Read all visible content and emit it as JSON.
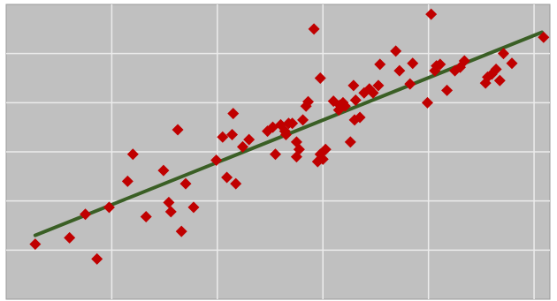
{
  "chart_data": {
    "type": "scatter",
    "title": "",
    "xlabel": "",
    "ylabel": "",
    "xlim": [
      0,
      10.3
    ],
    "ylim": [
      0,
      6
    ],
    "x_gridlines": [
      2,
      4,
      6,
      8,
      10
    ],
    "y_gridlines": [
      1,
      2,
      3,
      4,
      5
    ],
    "grid": true,
    "legend": "none",
    "colors": {
      "plot_background": "#c0c0c0",
      "gridline": "#ececec",
      "border": "#9a9a9a",
      "marker": "#c00000",
      "trendline": "#3a5f25"
    },
    "series": [
      {
        "marker": "diamond",
        "points": [
          [
            0.55,
            1.12
          ],
          [
            1.2,
            1.25
          ],
          [
            1.5,
            1.73
          ],
          [
            1.72,
            0.82
          ],
          [
            1.95,
            1.87
          ],
          [
            2.3,
            2.4
          ],
          [
            2.4,
            2.95
          ],
          [
            2.65,
            1.68
          ],
          [
            2.98,
            2.62
          ],
          [
            3.08,
            1.97
          ],
          [
            3.12,
            1.78
          ],
          [
            3.25,
            3.45
          ],
          [
            3.32,
            1.38
          ],
          [
            3.4,
            2.35
          ],
          [
            3.55,
            1.87
          ],
          [
            3.98,
            2.83
          ],
          [
            4.1,
            3.3
          ],
          [
            4.18,
            2.48
          ],
          [
            4.28,
            3.35
          ],
          [
            4.3,
            3.78
          ],
          [
            4.35,
            2.35
          ],
          [
            4.48,
            3.1
          ],
          [
            4.6,
            3.25
          ],
          [
            4.95,
            3.42
          ],
          [
            5.05,
            3.5
          ],
          [
            5.1,
            2.95
          ],
          [
            5.2,
            3.55
          ],
          [
            5.28,
            3.42
          ],
          [
            5.3,
            3.35
          ],
          [
            5.35,
            3.58
          ],
          [
            5.42,
            3.58
          ],
          [
            5.5,
            3.2
          ],
          [
            5.55,
            3.05
          ],
          [
            5.5,
            2.9
          ],
          [
            5.62,
            3.65
          ],
          [
            5.68,
            3.93
          ],
          [
            5.72,
            4.02
          ],
          [
            5.83,
            5.5
          ],
          [
            5.9,
            2.8
          ],
          [
            5.95,
            4.5
          ],
          [
            5.95,
            2.95
          ],
          [
            6.0,
            2.85
          ],
          [
            6.05,
            3.05
          ],
          [
            6.2,
            4.03
          ],
          [
            6.3,
            3.85
          ],
          [
            6.32,
            3.95
          ],
          [
            6.38,
            4.0
          ],
          [
            6.42,
            3.93
          ],
          [
            6.52,
            3.2
          ],
          [
            6.58,
            4.35
          ],
          [
            6.62,
            4.05
          ],
          [
            6.6,
            3.65
          ],
          [
            6.7,
            3.7
          ],
          [
            6.78,
            4.2
          ],
          [
            6.88,
            4.28
          ],
          [
            6.95,
            4.2
          ],
          [
            7.05,
            4.35
          ],
          [
            7.08,
            4.78
          ],
          [
            7.38,
            5.05
          ],
          [
            7.45,
            4.65
          ],
          [
            7.65,
            4.38
          ],
          [
            7.7,
            4.8
          ],
          [
            7.98,
            4.0
          ],
          [
            8.05,
            5.8
          ],
          [
            8.12,
            4.65
          ],
          [
            8.15,
            4.75
          ],
          [
            8.22,
            4.78
          ],
          [
            8.35,
            4.25
          ],
          [
            8.5,
            4.65
          ],
          [
            8.6,
            4.72
          ],
          [
            8.68,
            4.85
          ],
          [
            9.08,
            4.4
          ],
          [
            9.12,
            4.52
          ],
          [
            9.2,
            4.58
          ],
          [
            9.28,
            4.68
          ],
          [
            9.35,
            4.45
          ],
          [
            9.42,
            5.0
          ],
          [
            9.58,
            4.8
          ],
          [
            10.18,
            5.33
          ]
        ]
      }
    ],
    "trendline": {
      "type": "linear",
      "x_range": [
        0.55,
        10.15
      ],
      "slope": 0.4306,
      "intercept": 1.063
    }
  }
}
